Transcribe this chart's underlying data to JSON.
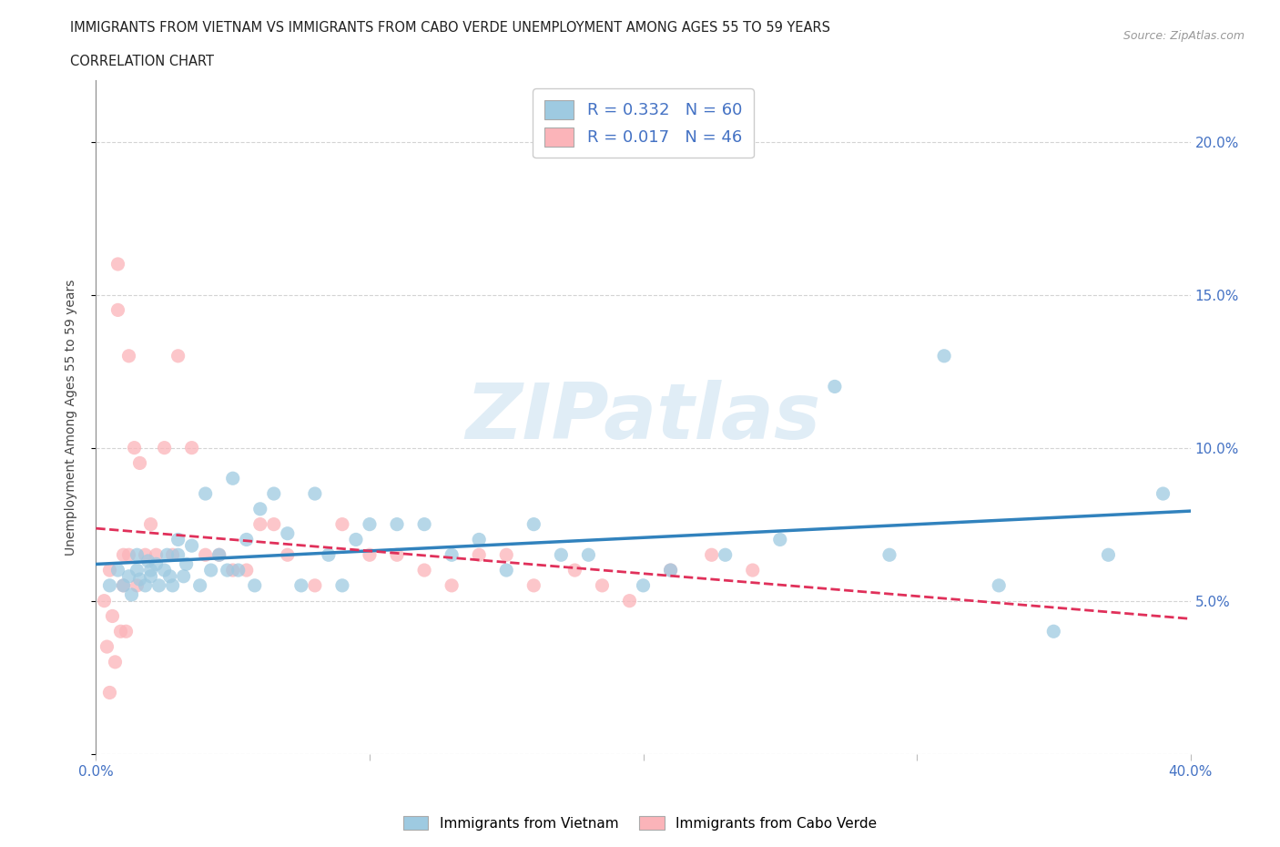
{
  "title_line1": "IMMIGRANTS FROM VIETNAM VS IMMIGRANTS FROM CABO VERDE UNEMPLOYMENT AMONG AGES 55 TO 59 YEARS",
  "title_line2": "CORRELATION CHART",
  "source": "Source: ZipAtlas.com",
  "ylabel": "Unemployment Among Ages 55 to 59 years",
  "xlim": [
    0.0,
    0.4
  ],
  "ylim": [
    0.0,
    0.22
  ],
  "xticks": [
    0.0,
    0.1,
    0.2,
    0.3,
    0.4
  ],
  "xticklabels": [
    "0.0%",
    "",
    "",
    "",
    "40.0%"
  ],
  "yticks": [
    0.0,
    0.05,
    0.1,
    0.15,
    0.2
  ],
  "yticklabels": [
    "",
    "5.0%",
    "10.0%",
    "15.0%",
    "20.0%"
  ],
  "watermark": "ZIPatlas",
  "R_vietnam": 0.332,
  "N_vietnam": 60,
  "R_caboverde": 0.017,
  "N_caboverde": 46,
  "vietnam_color": "#9ecae1",
  "caboverde_color": "#fbb4b9",
  "vietnam_line_color": "#3182bd",
  "caboverde_line_color": "#e0305a",
  "background_color": "#ffffff",
  "grid_color": "#d0d0d0",
  "vietnam_scatter_x": [
    0.005,
    0.008,
    0.01,
    0.012,
    0.013,
    0.015,
    0.015,
    0.016,
    0.018,
    0.019,
    0.02,
    0.02,
    0.022,
    0.023,
    0.025,
    0.026,
    0.027,
    0.028,
    0.03,
    0.03,
    0.032,
    0.033,
    0.035,
    0.038,
    0.04,
    0.042,
    0.045,
    0.048,
    0.05,
    0.052,
    0.055,
    0.058,
    0.06,
    0.065,
    0.07,
    0.075,
    0.08,
    0.085,
    0.09,
    0.095,
    0.1,
    0.11,
    0.12,
    0.13,
    0.14,
    0.15,
    0.16,
    0.17,
    0.18,
    0.2,
    0.21,
    0.23,
    0.25,
    0.27,
    0.29,
    0.31,
    0.33,
    0.35,
    0.37,
    0.39
  ],
  "vietnam_scatter_y": [
    0.055,
    0.06,
    0.055,
    0.058,
    0.052,
    0.06,
    0.065,
    0.057,
    0.055,
    0.063,
    0.058,
    0.06,
    0.062,
    0.055,
    0.06,
    0.065,
    0.058,
    0.055,
    0.065,
    0.07,
    0.058,
    0.062,
    0.068,
    0.055,
    0.085,
    0.06,
    0.065,
    0.06,
    0.09,
    0.06,
    0.07,
    0.055,
    0.08,
    0.085,
    0.072,
    0.055,
    0.085,
    0.065,
    0.055,
    0.07,
    0.075,
    0.075,
    0.075,
    0.065,
    0.07,
    0.06,
    0.075,
    0.065,
    0.065,
    0.055,
    0.06,
    0.065,
    0.07,
    0.12,
    0.065,
    0.13,
    0.055,
    0.04,
    0.065,
    0.085
  ],
  "caboverde_scatter_x": [
    0.003,
    0.004,
    0.005,
    0.005,
    0.006,
    0.007,
    0.008,
    0.008,
    0.009,
    0.01,
    0.01,
    0.011,
    0.012,
    0.012,
    0.014,
    0.015,
    0.016,
    0.018,
    0.02,
    0.022,
    0.025,
    0.028,
    0.03,
    0.035,
    0.04,
    0.045,
    0.05,
    0.055,
    0.06,
    0.065,
    0.07,
    0.08,
    0.09,
    0.1,
    0.11,
    0.12,
    0.13,
    0.14,
    0.15,
    0.16,
    0.175,
    0.185,
    0.195,
    0.21,
    0.225,
    0.24
  ],
  "caboverde_scatter_y": [
    0.05,
    0.035,
    0.06,
    0.02,
    0.045,
    0.03,
    0.16,
    0.145,
    0.04,
    0.065,
    0.055,
    0.04,
    0.065,
    0.13,
    0.1,
    0.055,
    0.095,
    0.065,
    0.075,
    0.065,
    0.1,
    0.065,
    0.13,
    0.1,
    0.065,
    0.065,
    0.06,
    0.06,
    0.075,
    0.075,
    0.065,
    0.055,
    0.075,
    0.065,
    0.065,
    0.06,
    0.055,
    0.065,
    0.065,
    0.055,
    0.06,
    0.055,
    0.05,
    0.06,
    0.065,
    0.06
  ]
}
